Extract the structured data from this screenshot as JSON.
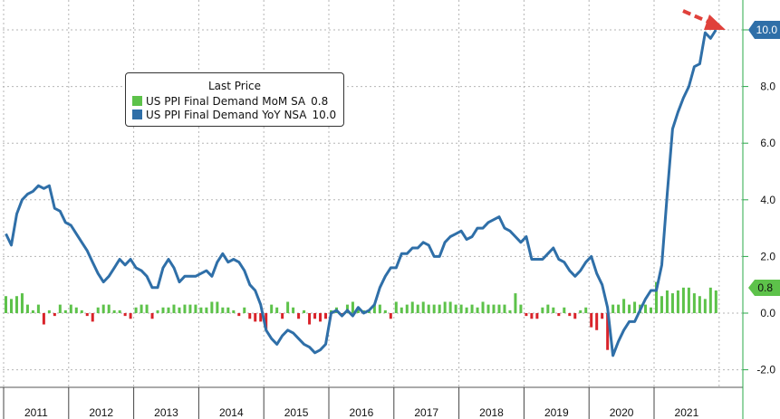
{
  "chart_data": {
    "type": "bar+line",
    "legend_title": "Last Price",
    "legend_position": "top-left",
    "grid": true,
    "colors": {
      "mom": "#5dc24a",
      "mom_negative": "#d9232a",
      "yoy": "#2f6fa8",
      "yoy_badge": "#2f6fa8",
      "mom_badge": "#5dc24a",
      "axis": "#2aa84a",
      "arrow": "#e0413b"
    },
    "ylim": [
      -2.5,
      11
    ],
    "yticks": [
      -2.0,
      0.0,
      2.0,
      4.0,
      6.0,
      8.0,
      10.0
    ],
    "ytick_labels": [
      "-2.0",
      "0.0",
      "2.0",
      "4.0",
      "6.0",
      "8.0",
      "10.0"
    ],
    "xticks": [
      "2011",
      "2012",
      "2013",
      "2014",
      "2015",
      "2016",
      "2017",
      "2018",
      "2019",
      "2020",
      "2021"
    ],
    "x_start": "2011-01",
    "last_values": {
      "yoy": "10.0",
      "mom": "0.8"
    },
    "series": [
      {
        "name": "US PPI Final Demand MoM SA",
        "legend_label": "US PPI Final Demand MoM SA",
        "legend_value": "0.8",
        "type": "bar",
        "values": [
          0.6,
          0.5,
          0.6,
          0.7,
          0.3,
          0.1,
          0.3,
          -0.4,
          0.1,
          -0.1,
          0.3,
          0.1,
          0.3,
          0.2,
          0.1,
          -0.1,
          -0.3,
          0.2,
          0.3,
          0.3,
          0.1,
          0.1,
          -0.1,
          -0.2,
          0.2,
          0.3,
          0.3,
          -0.2,
          0.1,
          0.2,
          0.2,
          0.3,
          0.2,
          0.3,
          0.3,
          0.3,
          0.2,
          0.2,
          0.4,
          0.4,
          0.2,
          0.2,
          0.1,
          -0.1,
          0.2,
          -0.2,
          -0.3,
          -0.3,
          -0.6,
          0.3,
          0.2,
          -0.2,
          0.4,
          0.2,
          -0.2,
          0.1,
          -0.4,
          -0.2,
          -0.3,
          -0.2,
          0.1,
          0.2,
          -0.1,
          0.3,
          0.4,
          0.2,
          0.1,
          0.1,
          0.3,
          0.3,
          0.1,
          -0.2,
          0.4,
          0.2,
          0.3,
          0.4,
          0.3,
          0.4,
          0.3,
          0.3,
          0.3,
          0.4,
          0.4,
          0.3,
          0.3,
          0.2,
          0.3,
          0.2,
          0.4,
          0.3,
          0.3,
          0.3,
          0.3,
          0.1,
          0.7,
          0.3,
          -0.1,
          -0.2,
          -0.2,
          0.2,
          0.3,
          0.2,
          -0.1,
          0.2,
          -0.1,
          -0.2,
          0.1,
          0.2,
          -0.5,
          -0.6,
          -0.2,
          -1.3,
          0.3,
          0.3,
          0.5,
          0.3,
          0.4,
          0.3,
          0.3,
          0.2,
          1.1,
          0.6,
          0.8,
          0.7,
          0.8,
          0.9,
          0.9,
          0.7,
          0.6,
          0.5,
          0.9,
          0.8
        ]
      },
      {
        "name": "US PPI Final Demand YoY NSA",
        "legend_label": "US PPI Final Demand YoY NSA",
        "legend_value": "10.0",
        "type": "line",
        "values": [
          2.8,
          2.4,
          3.5,
          4.0,
          4.2,
          4.3,
          4.5,
          4.4,
          4.5,
          3.7,
          3.6,
          3.2,
          3.1,
          2.8,
          2.5,
          2.2,
          1.8,
          1.4,
          1.1,
          1.3,
          1.6,
          1.9,
          1.7,
          1.9,
          1.6,
          1.5,
          1.3,
          0.9,
          0.9,
          1.6,
          1.9,
          1.6,
          1.1,
          1.3,
          1.3,
          1.3,
          1.4,
          1.5,
          1.3,
          1.8,
          2.1,
          1.8,
          1.9,
          1.8,
          1.5,
          1.0,
          0.8,
          0.3,
          -0.6,
          -0.9,
          -1.1,
          -0.8,
          -0.6,
          -0.7,
          -0.9,
          -1.1,
          -1.2,
          -1.4,
          -1.3,
          -1.1,
          0.0,
          0.1,
          -0.1,
          0.1,
          -0.1,
          0.2,
          0.0,
          0.1,
          0.3,
          0.9,
          1.3,
          1.6,
          1.6,
          2.1,
          2.1,
          2.3,
          2.3,
          2.5,
          2.4,
          2.0,
          2.0,
          2.5,
          2.7,
          2.8,
          2.9,
          2.6,
          2.7,
          3.0,
          3.0,
          3.2,
          3.3,
          3.4,
          3.0,
          2.9,
          2.7,
          2.5,
          2.7,
          1.9,
          1.9,
          1.9,
          2.1,
          2.3,
          1.9,
          1.8,
          1.5,
          1.3,
          1.5,
          1.8,
          2.0,
          1.4,
          1.0,
          0.2,
          -1.5,
          -1.0,
          -0.6,
          -0.3,
          -0.3,
          0.1,
          0.5,
          0.8,
          0.8,
          1.7,
          4.2,
          6.5,
          7.1,
          7.6,
          8.0,
          8.7,
          8.8,
          9.9,
          9.7,
          10.0
        ]
      }
    ]
  }
}
